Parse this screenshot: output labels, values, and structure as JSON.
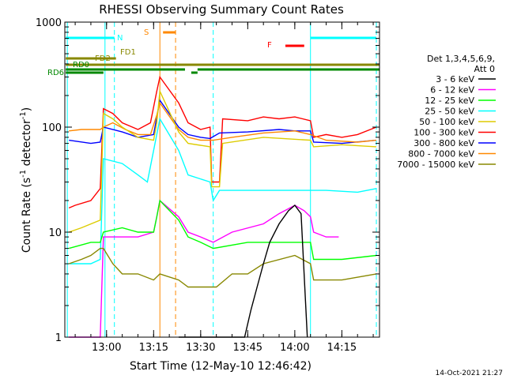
{
  "chart_data": {
    "type": "line",
    "title": "RHESSI Observing Summary Count Rates",
    "xlabel": "Start Time (12-May-10 12:46:42)",
    "ylabel": "Count Rate (s⁻¹ detector⁻¹)",
    "ylabel_parts": {
      "main": "Count Rate (s",
      "exp1": "-1",
      "mid": " detector",
      "exp2": "-1",
      "end": ")"
    },
    "yscale": "log",
    "xlim": [
      "12:46:42",
      "14:27:00"
    ],
    "ylim": [
      1,
      1000
    ],
    "x_ticks": [
      "13:00",
      "13:15",
      "13:30",
      "13:45",
      "14:00",
      "14:15"
    ],
    "y_ticks": [
      "1",
      "10",
      "100",
      "1000"
    ],
    "timestamp": "14-Oct-2021 21:27",
    "legend": {
      "placement": "right",
      "header": [
        "Det 1,3,4,5,6,9,",
        "Att 0"
      ],
      "entries": [
        {
          "label": "3 - 6 keV",
          "color": "#000000"
        },
        {
          "label": "6 - 12 keV",
          "color": "#ff00ff"
        },
        {
          "label": "12 - 25 keV",
          "color": "#00ff00"
        },
        {
          "label": "25 - 50 keV",
          "color": "#00ffff"
        },
        {
          "label": "50 - 100 keV",
          "color": "#ddcc00"
        },
        {
          "label": "100 - 300 keV",
          "color": "#ff0000"
        },
        {
          "label": "300 - 800 keV",
          "color": "#0000ff"
        },
        {
          "label": "800 - 7000 keV",
          "color": "#ff8800"
        },
        {
          "label": "7000 - 15000 keV",
          "color": "#888800"
        }
      ]
    },
    "flag_bars": [
      {
        "label": "N",
        "color": "#00ffff",
        "segments": [
          [
            "12:47:00",
            "13:02:30"
          ],
          [
            "14:05:00",
            "14:26:00"
          ]
        ]
      },
      {
        "label": "S",
        "color": "#ff8800",
        "segments": [
          [
            "13:18:00",
            "13:22:00"
          ]
        ]
      },
      {
        "label": "F",
        "color": "#ff0000",
        "segments": [
          [
            "13:57:00",
            "14:03:00"
          ]
        ]
      },
      {
        "label": "FD1",
        "color": "#888800",
        "segments": [
          [
            "12:47:00",
            "13:03:00"
          ]
        ]
      },
      {
        "label": "FD2",
        "color": "#888800",
        "segments": [
          [
            "12:47:00",
            "14:27:00"
          ]
        ]
      },
      {
        "label": "RD0",
        "color": "#008800",
        "segments": [
          [
            "12:47:00",
            "13:25:00"
          ],
          [
            "13:29:00",
            "14:27:00"
          ]
        ]
      },
      {
        "label": "RD6",
        "color": "#008800",
        "segments": [
          [
            "12:47:00",
            "12:59:00"
          ],
          [
            "13:27:00",
            "13:29:00"
          ]
        ]
      }
    ],
    "vertical_markers": [
      {
        "time": "12:47:30",
        "color": "#00ffff",
        "style": "solid"
      },
      {
        "time": "12:59:30",
        "color": "#00ffff",
        "style": "solid"
      },
      {
        "time": "13:02:30",
        "color": "#00ffff",
        "style": "dashed"
      },
      {
        "time": "13:17:00",
        "color": "#ff8800",
        "style": "solid"
      },
      {
        "time": "13:22:00",
        "color": "#ff8800",
        "style": "dashed"
      },
      {
        "time": "13:34:00",
        "color": "#00ffff",
        "style": "dashed"
      },
      {
        "time": "14:05:00",
        "color": "#00ffff",
        "style": "solid"
      },
      {
        "time": "14:26:00",
        "color": "#00ffff",
        "style": "dashed"
      }
    ],
    "series": [
      {
        "name": "100 - 300 keV",
        "color": "#ff0000",
        "x": [
          "12:48",
          "12:50",
          "12:55",
          "12:58",
          "12:59",
          "13:02",
          "13:05",
          "13:10",
          "13:14",
          "13:16",
          "13:17",
          "13:23",
          "13:26",
          "13:30",
          "13:33",
          "13:33.5",
          "13:36",
          "13:37",
          "13:45",
          "13:50",
          "13:55",
          "14:00",
          "14:05",
          "14:06",
          "14:10",
          "14:15",
          "14:20",
          "14:26"
        ],
        "y": [
          17,
          18,
          20,
          26,
          150,
          135,
          110,
          95,
          110,
          220,
          300,
          170,
          110,
          95,
          100,
          30,
          30,
          120,
          115,
          125,
          120,
          125,
          115,
          80,
          85,
          80,
          85,
          100
        ]
      },
      {
        "name": "300 - 800 keV",
        "color": "#0000ff",
        "x": [
          "12:48",
          "12:55",
          "12:58",
          "12:59",
          "13:05",
          "13:10",
          "13:15",
          "13:17",
          "13:23",
          "13:26",
          "13:30",
          "13:33",
          "13:36",
          "13:45",
          "13:55",
          "14:00",
          "14:05",
          "14:06",
          "14:15",
          "14:26"
        ],
        "y": [
          75,
          70,
          72,
          100,
          90,
          80,
          85,
          180,
          100,
          85,
          80,
          78,
          88,
          90,
          95,
          92,
          92,
          72,
          70,
          75
        ]
      },
      {
        "name": "800 - 7000 keV",
        "color": "#ff8800",
        "x": [
          "12:48",
          "12:52",
          "12:58",
          "12:59",
          "13:02",
          "13:06",
          "13:10",
          "13:14",
          "13:16",
          "13:17",
          "13:23",
          "13:26",
          "13:30",
          "13:34",
          "13:40",
          "13:50",
          "14:00",
          "14:05",
          "14:10",
          "14:20",
          "14:26"
        ],
        "y": [
          92,
          95,
          95,
          100,
          110,
          95,
          85,
          85,
          130,
          170,
          95,
          80,
          75,
          75,
          80,
          88,
          92,
          85,
          75,
          72,
          75
        ]
      },
      {
        "name": "50 - 100 keV",
        "color": "#ddcc00",
        "x": [
          "12:48",
          "12:52",
          "12:58",
          "12:59",
          "13:02",
          "13:05",
          "13:10",
          "13:15",
          "13:16",
          "13:17",
          "13:23",
          "13:26",
          "13:33",
          "13:33.5",
          "13:36",
          "13:37",
          "13:50",
          "14:05",
          "14:06",
          "14:15",
          "14:26"
        ],
        "y": [
          10,
          11,
          13,
          135,
          120,
          100,
          80,
          75,
          110,
          220,
          90,
          70,
          65,
          27,
          27,
          70,
          80,
          75,
          65,
          68,
          65
        ]
      },
      {
        "name": "25 - 50 keV",
        "color": "#00ffff",
        "x": [
          "12:48",
          "12:55",
          "12:58",
          "12:59",
          "13:05",
          "13:10",
          "13:13",
          "13:17",
          "13:23",
          "13:26",
          "13:33",
          "13:34",
          "13:36",
          "13:50",
          "14:05",
          "14:10",
          "14:20",
          "14:26"
        ],
        "y": [
          5,
          5,
          5.5,
          50,
          45,
          35,
          30,
          120,
          60,
          35,
          30,
          20,
          25,
          25,
          25,
          25,
          24,
          26
        ]
      },
      {
        "name": "6 - 12 keV",
        "color": "#ff00ff",
        "x": [
          "12:48",
          "12:58",
          "12:59",
          "13:10",
          "13:15",
          "13:16",
          "13:17",
          "13:23",
          "13:26",
          "13:30",
          "13:34",
          "13:40",
          "13:50",
          "13:55",
          "14:00",
          "14:03",
          "14:05",
          "14:06",
          "14:10",
          "14:14"
        ],
        "y": [
          1,
          1,
          9,
          9,
          10,
          14,
          20,
          14,
          10,
          9,
          8,
          10,
          12,
          15,
          18,
          16,
          14,
          10,
          9,
          9
        ]
      },
      {
        "name": "12 - 25 keV",
        "color": "#00ff00",
        "x": [
          "12:48",
          "12:55",
          "12:58",
          "12:59",
          "13:05",
          "13:10",
          "13:15",
          "13:16",
          "13:17",
          "13:23",
          "13:26",
          "13:30",
          "13:34",
          "13:45",
          "14:00",
          "14:05",
          "14:06",
          "14:15",
          "14:26"
        ],
        "y": [
          7,
          8,
          8,
          10,
          11,
          10,
          10,
          14,
          20,
          13,
          9,
          8,
          7,
          8,
          8,
          8,
          5.5,
          5.5,
          6
        ]
      },
      {
        "name": "7000 - 15000 keV",
        "color": "#888800",
        "x": [
          "12:48",
          "12:52",
          "12:55",
          "12:58",
          "12:59",
          "13:02",
          "13:05",
          "13:10",
          "13:15",
          "13:17",
          "13:23",
          "13:26",
          "13:30",
          "13:35",
          "13:40",
          "13:45",
          "13:50",
          "14:00",
          "14:05",
          "14:06",
          "14:15",
          "14:26"
        ],
        "y": [
          5,
          5.5,
          6,
          7,
          7,
          5,
          4,
          4,
          3.5,
          4,
          3.5,
          3,
          3,
          3,
          4,
          4,
          5,
          6,
          5,
          3.5,
          3.5,
          4
        ]
      },
      {
        "name": "3 - 6 keV",
        "color": "#000000",
        "x": [
          "13:23",
          "13:26",
          "13:30",
          "13:33",
          "13:36",
          "13:40",
          "13:44",
          "13:46",
          "13:48",
          "13:50",
          "13:52",
          "13:55",
          "13:58",
          "14:00",
          "14:02",
          "14:04"
        ],
        "y": [
          1,
          1,
          1,
          1,
          1,
          1,
          1,
          1.8,
          3,
          5,
          8,
          12,
          16,
          18,
          15,
          1
        ]
      }
    ]
  }
}
